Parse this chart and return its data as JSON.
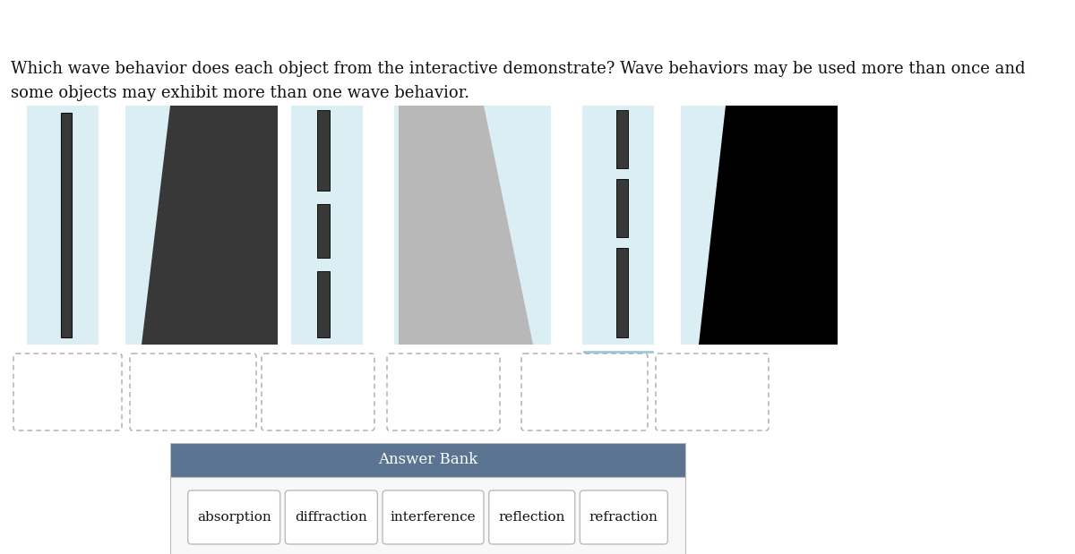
{
  "title_text1": "Which wave behavior does each object from the interactive demonstrate? Wave behaviors may be used more than once and",
  "title_text2": "some objects may exhibit more than one wave behavior.",
  "bg_color": "#ffffff",
  "light_blue": "#daeef3",
  "dark_gray": "#383838",
  "black": "#000000",
  "medium_gray": "#b8b8b8",
  "answer_bank_header_color": "#5b7492",
  "answer_bank_bg": "#f0f0f0",
  "answer_bank_header_text": "Answer Bank",
  "answer_words": [
    "absorption",
    "diffraction",
    "interference",
    "reflection",
    "refraction"
  ],
  "fig_w": 12.0,
  "fig_h": 6.19,
  "dpi": 100
}
